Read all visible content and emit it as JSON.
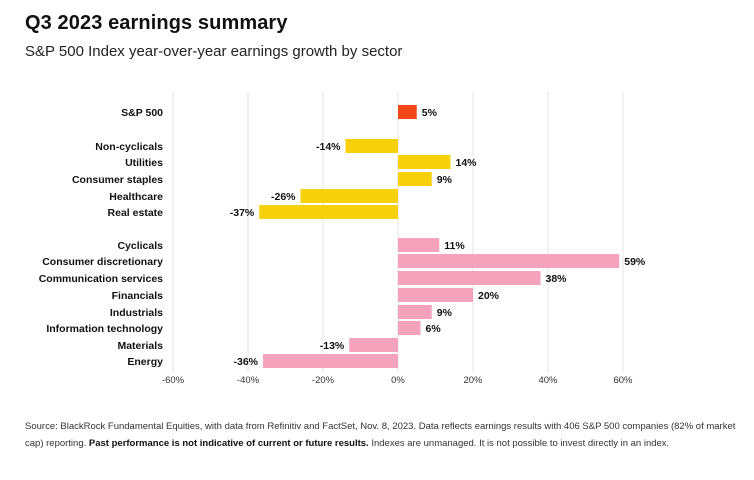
{
  "title": "Q3 2023 earnings summary",
  "subtitle": "S&P 500 Index year-over-year earnings growth by sector",
  "source": {
    "part1": "Source: BlackRock Fundamental Equities, with data from Refinitiv and FactSet, Nov. 8, 2023. Data reflects earnings results with 406 S&P 500 companies (82% of market cap) reporting. ",
    "bold": "Past performance is not indicative of current or future results.",
    "part2": " Indexes are unmanaged. It is not possible to invest directly in an index."
  },
  "chart_data": {
    "type": "bar",
    "orientation": "horizontal",
    "title": "Q3 2023 earnings summary",
    "subtitle": "S&P 500 Index year-over-year earnings growth by sector",
    "xlim": [
      -60,
      60
    ],
    "xticks": [
      -60,
      -40,
      -20,
      0,
      20,
      40,
      60
    ],
    "xtick_labels": [
      "-60%",
      "-40%",
      "-20%",
      "0%",
      "20%",
      "40%",
      "60%"
    ],
    "grid": true,
    "categories": [
      "S&P 500",
      "Non-cyclicals",
      "Utilities",
      "Consumer staples",
      "Healthcare",
      "Real estate",
      "Cyclicals",
      "Consumer discretionary",
      "Communication services",
      "Financials",
      "Industrials",
      "Information technology",
      "Materials",
      "Energy"
    ],
    "values": [
      5,
      -14,
      14,
      9,
      -26,
      -37,
      11,
      59,
      38,
      20,
      9,
      6,
      -13,
      -36
    ],
    "value_labels": [
      "5%",
      "-14%",
      "14%",
      "9%",
      "-26%",
      "-37%",
      "11%",
      "59%",
      "38%",
      "20%",
      "9%",
      "6%",
      "-13%",
      "-36%"
    ],
    "groups": [
      "total",
      "non-cyclical",
      "non-cyclical",
      "non-cyclical",
      "non-cyclical",
      "non-cyclical",
      "cyclical",
      "cyclical",
      "cyclical",
      "cyclical",
      "cyclical",
      "cyclical",
      "cyclical",
      "cyclical"
    ],
    "colors": {
      "total": "#f1471b",
      "non-cyclical": "#f7d10b",
      "cyclical": "#f5a2bd",
      "grid": "#e3e3e3"
    }
  }
}
